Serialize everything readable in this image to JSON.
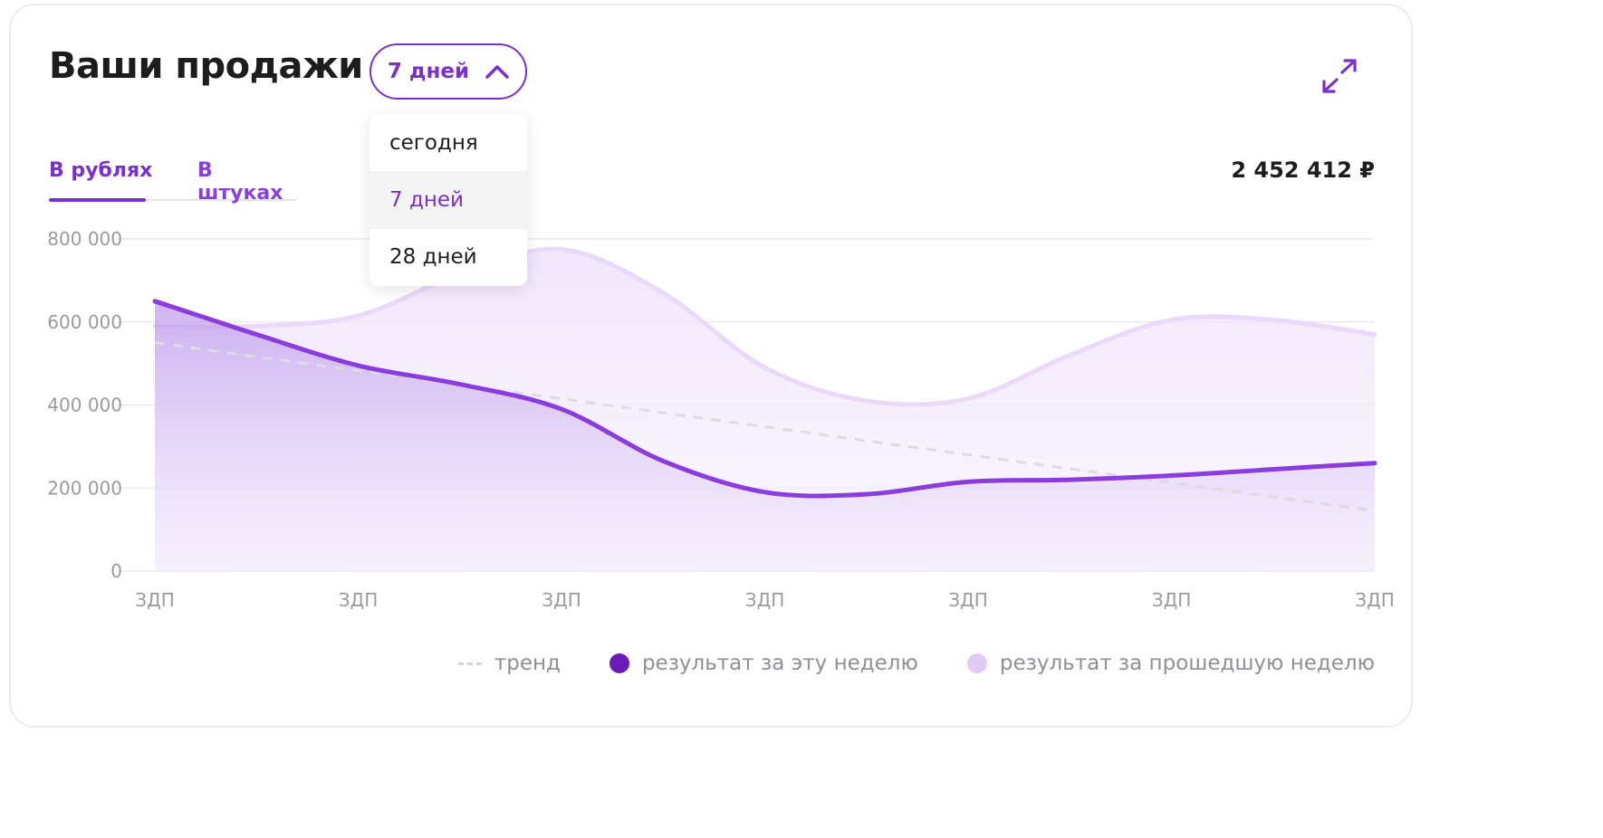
{
  "header": {
    "title": "Ваши продажи",
    "period_label": "7 дней"
  },
  "dropdown": {
    "options": [
      "сегодня",
      "7 дней",
      "28 дней"
    ],
    "selected": "7 дней"
  },
  "tabs": {
    "rub": "В рублях",
    "pcs": "В штуках",
    "active": "В рублях"
  },
  "total": "2 452 412 ₽",
  "legend": {
    "trend": "тренд",
    "this_week": "результат за эту неделю",
    "last_week": "результат за прошедшую неделю"
  },
  "colors": {
    "accent": "#7b2fd0",
    "this_week_line": "#8a3ddc",
    "this_week_dot": "#6a1bb8",
    "last_week_line": "#ead9fb",
    "last_week_dot": "#e3cbf7",
    "trend": "#dcdce0"
  },
  "icons": {
    "expand": "expand-icon",
    "chevron": "chevron-up-icon"
  },
  "chart_data": {
    "type": "area",
    "categories": [
      "ЗДП",
      "ЗДП",
      "ЗДП",
      "ЗДП",
      "ЗДП",
      "ЗДП",
      "ЗДП"
    ],
    "y_ticks": [
      "800 000",
      "600 000",
      "400 000",
      "200 000",
      "0"
    ],
    "y_tick_values": [
      800000,
      600000,
      400000,
      200000,
      0
    ],
    "ylim": [
      0,
      800000
    ],
    "grid": true,
    "legend_position": "bottom-right",
    "series": [
      {
        "name": "результат за эту неделю",
        "x": [
          0,
          0.5,
          1,
          1.5,
          2,
          2.5,
          3,
          3.5,
          4,
          4.5,
          5,
          5.5,
          6
        ],
        "values": [
          650000,
          570000,
          495000,
          450000,
          390000,
          265000,
          190000,
          185000,
          215000,
          220000,
          230000,
          245000,
          260000
        ]
      },
      {
        "name": "результат за прошедшую неделю",
        "x": [
          0,
          0.5,
          1,
          1.5,
          2,
          2.5,
          3,
          3.5,
          4,
          4.5,
          5,
          5.5,
          6
        ],
        "values": [
          590000,
          590000,
          615000,
          715000,
          775000,
          670000,
          490000,
          410000,
          415000,
          520000,
          605000,
          605000,
          570000
        ]
      },
      {
        "name": "тренд",
        "x": [
          0,
          6
        ],
        "values": [
          550000,
          145000
        ]
      }
    ]
  }
}
